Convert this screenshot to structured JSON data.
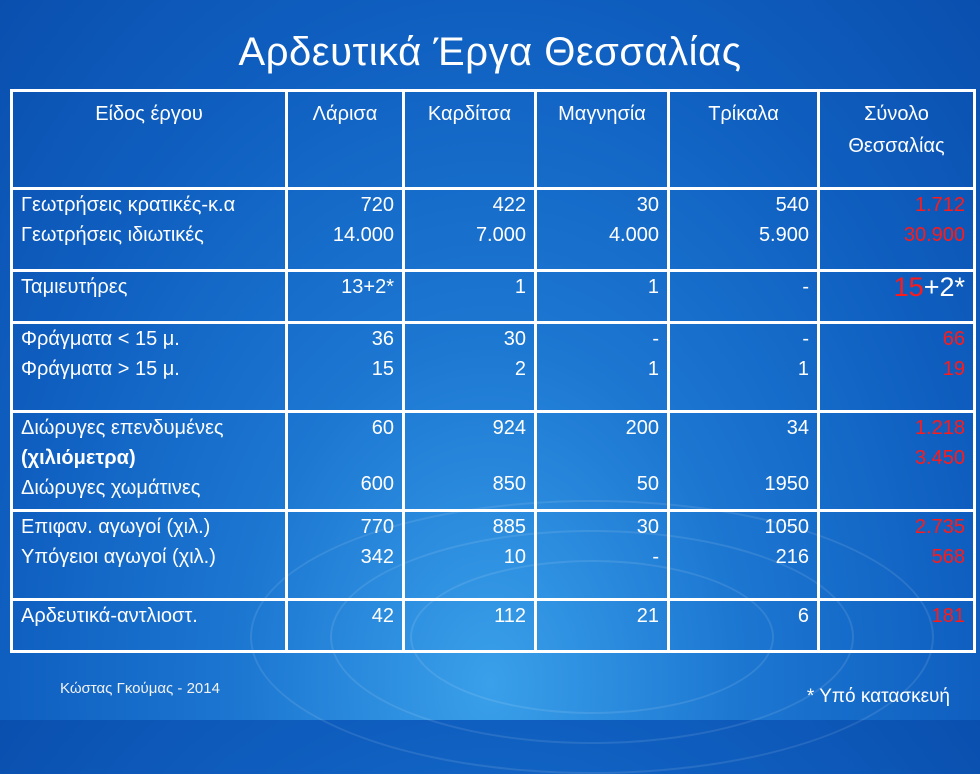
{
  "title": "Αρδευτικά Έργα Θεσσαλίας",
  "table": {
    "headers": [
      "Είδος έργου",
      "Λάρισα",
      "Καρδίτσα",
      "Μαγνησία",
      "Τρίκαλα",
      "Σύνολο",
      "Θεσσαλίας"
    ],
    "rows": {
      "wells": {
        "label1": "Γεωτρήσεις κρατικές-κ.α",
        "label2": "Γεωτρήσεις ιδιωτικές",
        "larisa": [
          "720",
          "14.000"
        ],
        "karditsa": [
          "422",
          "7.000"
        ],
        "magnisia": [
          "30",
          "4.000"
        ],
        "trikala": [
          "540",
          "5.900"
        ],
        "total": [
          "1.712",
          "30.900"
        ]
      },
      "reservoirs": {
        "label": "Ταμιευτήρες",
        "larisa": "13+2*",
        "karditsa": "1",
        "magnisia": "1",
        "trikala": "-",
        "total_red": "15",
        "total_rest": "+2*"
      },
      "dams": {
        "label1": "Φράγματα < 15 μ.",
        "label2": "Φράγματα > 15 μ.",
        "larisa": [
          "36",
          "15"
        ],
        "karditsa": [
          "30",
          "2"
        ],
        "magnisia": [
          "-",
          "1"
        ],
        "trikala": [
          "-",
          "1"
        ],
        "total": [
          "66",
          "19"
        ]
      },
      "canals": {
        "label1": "Διώρυγες επενδυμένες",
        "label_unit": "(χιλιόμετρα)",
        "label2": "Διώρυγες χωμάτινες",
        "larisa": [
          "60",
          "600"
        ],
        "karditsa": [
          "924",
          "850"
        ],
        "magnisia": [
          "200",
          "50"
        ],
        "trikala": [
          "34",
          "1950"
        ],
        "total": [
          "1.218",
          "3.450"
        ]
      },
      "pipes": {
        "label1": "Επιφαν. αγωγοί (χιλ.)",
        "label2": "Υπόγειοι αγωγοί (χιλ.)",
        "larisa": [
          "770",
          "342"
        ],
        "karditsa": [
          "885",
          "10"
        ],
        "magnisia": [
          "30",
          "-"
        ],
        "trikala": [
          "1050",
          "216"
        ],
        "total": [
          "2.735",
          "568"
        ]
      },
      "pumps": {
        "label": "Αρδευτικά-αντλιοστ.",
        "larisa": "42",
        "karditsa": "112",
        "magnisia": "21",
        "trikala": "6",
        "total": "181"
      }
    }
  },
  "author": "Κώστας Γκούμας - 2014",
  "footnote": "* Υπό κατασκευή"
}
